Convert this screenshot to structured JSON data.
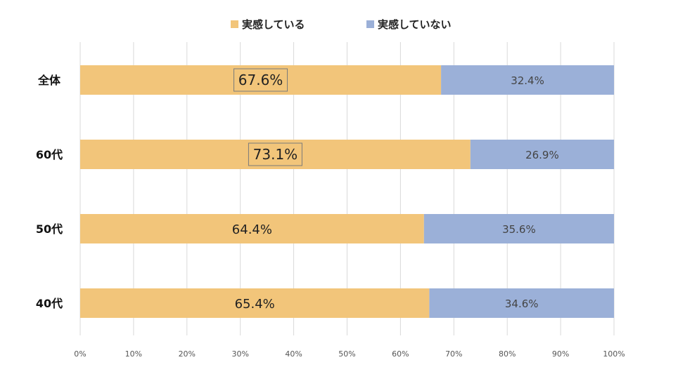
{
  "chart_data": {
    "type": "bar",
    "orientation": "horizontal",
    "stacked": true,
    "categories": [
      "全体",
      "60代",
      "50代",
      "40代"
    ],
    "series": [
      {
        "name": "実感している",
        "color": "#f2c57a",
        "values": [
          67.6,
          73.1,
          64.4,
          65.4
        ],
        "labels": [
          "67.6%",
          "73.1%",
          "64.4%",
          "65.4%"
        ],
        "boxed": [
          true,
          true,
          false,
          false
        ]
      },
      {
        "name": "実感していない",
        "color": "#9bb0d8",
        "values": [
          32.4,
          26.9,
          35.6,
          34.6
        ],
        "labels": [
          "32.4%",
          "26.9%",
          "35.6%",
          "34.6%"
        ]
      }
    ],
    "x_ticks": [
      "0%",
      "10%",
      "20%",
      "30%",
      "40%",
      "50%",
      "60%",
      "70%",
      "80%",
      "90%",
      "100%"
    ],
    "xlim": [
      0,
      100
    ],
    "grid": true,
    "legend_position": "top",
    "gridline_color": "#d9d9d9"
  }
}
